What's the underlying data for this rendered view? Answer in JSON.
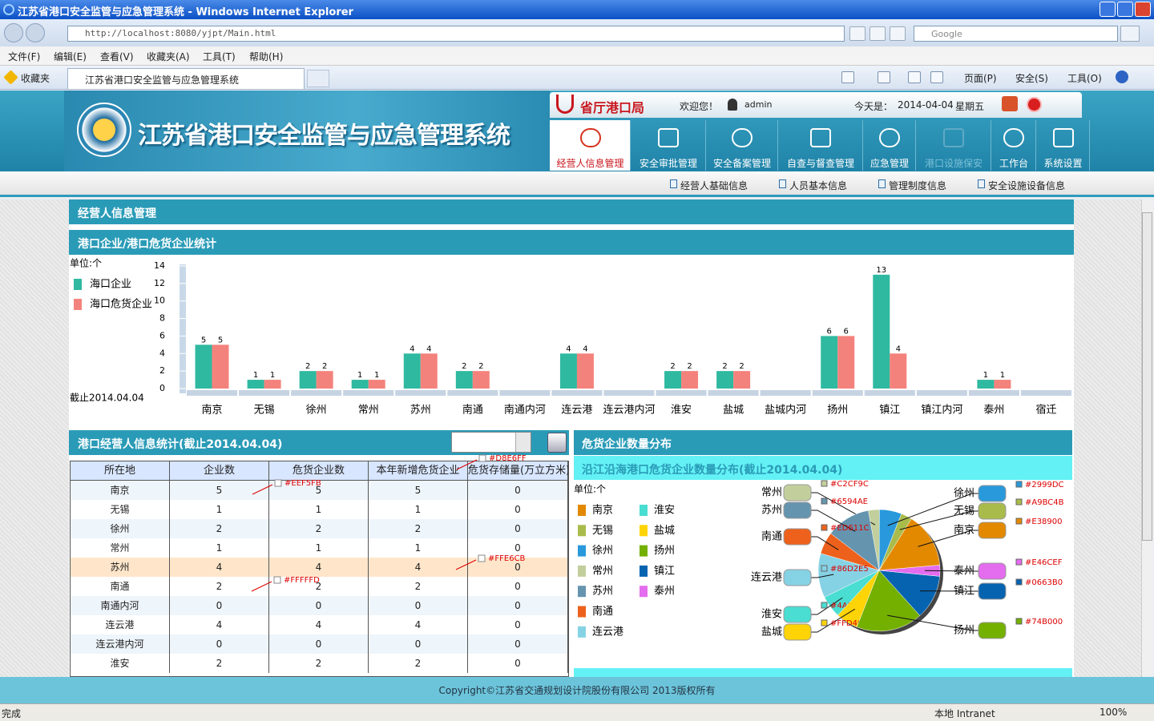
{
  "browser": {
    "title": "江苏省港口安全监管与应急管理系统 - Windows Internet Explorer",
    "address": "http://localhost:8080/yjpt/Main.html",
    "search": "Google",
    "menu": [
      "文件(F)",
      "编辑(E)",
      "查看(V)",
      "收藏夹(A)",
      "工具(T)",
      "帮助(H)"
    ],
    "favorites": "收藏夹",
    "tab": "江苏省港口安全监管与应急管理系统",
    "tools": [
      "页面(P)",
      "安全(S)",
      "工具(O)"
    ],
    "status": "完成",
    "zone": "本地 Intranet",
    "zoom": "100%"
  },
  "header": {
    "system_title": "江苏省港口安全监管与应急管理系统",
    "bureau": "省厅港口局",
    "welcome": "欢迎您！",
    "user": "admin",
    "date_label": "今天是：",
    "date": "2014-04-04",
    "weekday": "星期五"
  },
  "nav": [
    "经营人信息管理",
    "安全审批管理",
    "安全备案管理",
    "自查与督查管理",
    "应急管理",
    "港口设施保安",
    "工作台",
    "系统设置"
  ],
  "subnav": [
    "经营人基础信息",
    "人员基本信息",
    "管理制度信息",
    "安全设施设备信息"
  ],
  "section_title": "经营人信息管理",
  "panels": {
    "bar": "港口企业/港口危货企业统计",
    "table": "港口经营人信息统计(截止2014.04.04)",
    "pie": "危货企业数量分布"
  },
  "chart_data": [
    {
      "type": "bar",
      "unit_label": "单位:个",
      "note": "截止2014.04.04",
      "categories": [
        "南京",
        "无锡",
        "徐州",
        "常州",
        "苏州",
        "南通",
        "南通内河",
        "连云港",
        "连云港内河",
        "淮安",
        "盐城",
        "盐城内河",
        "扬州",
        "镇江",
        "镇江内河",
        "泰州",
        "宿迁"
      ],
      "series": [
        {
          "name": "海口企业",
          "color": "#2fb9a0",
          "values": [
            5,
            1,
            2,
            1,
            4,
            2,
            0,
            4,
            0,
            2,
            2,
            0,
            6,
            13,
            0,
            1,
            0
          ]
        },
        {
          "name": "海口危货企业",
          "color": "#f4827c",
          "values": [
            5,
            1,
            2,
            1,
            4,
            2,
            0,
            4,
            0,
            2,
            2,
            0,
            6,
            4,
            0,
            1,
            0
          ]
        }
      ],
      "ylim": [
        0,
        14
      ],
      "yticks": [
        0,
        2,
        4,
        6,
        8,
        10,
        12,
        14
      ],
      "grid": false,
      "legend": "left"
    },
    {
      "type": "pie",
      "title": "沿江沿海港口危货企业数量分布(截止2014.04.04)",
      "unit_label": "单位:个",
      "categories": [
        "南京",
        "无锡",
        "徐州",
        "常州",
        "苏州",
        "南通",
        "连云港",
        "淮安",
        "盐城",
        "扬州",
        "镇江",
        "泰州"
      ],
      "values": [
        5,
        1,
        2,
        1,
        4,
        2,
        4,
        2,
        2,
        6,
        4,
        1
      ],
      "colors": [
        "#E38900",
        "#A9BC4B",
        "#2999DC",
        "#C2CF9C",
        "#6594AE",
        "#ED611C",
        "#86D2E5",
        "#4ADDD2",
        "#FFD406",
        "#74B000",
        "#0663B0",
        "#E46CEF"
      ]
    }
  ],
  "table": {
    "headers": [
      "所在地",
      "企业数",
      "危货企业数",
      "本年新增危货企业",
      "危货存储量(万立方米)"
    ],
    "rows": [
      [
        "南京",
        5,
        5,
        5,
        0
      ],
      [
        "无锡",
        1,
        1,
        1,
        0
      ],
      [
        "徐州",
        2,
        2,
        2,
        0
      ],
      [
        "常州",
        1,
        1,
        1,
        0
      ],
      [
        "苏州",
        4,
        4,
        4,
        0
      ],
      [
        "南通",
        2,
        2,
        2,
        0
      ],
      [
        "南通内河",
        0,
        0,
        0,
        0
      ],
      [
        "连云港",
        4,
        4,
        4,
        0
      ],
      [
        "连云港内河",
        0,
        0,
        0,
        0
      ],
      [
        "淮安",
        2,
        2,
        2,
        0
      ]
    ]
  },
  "annotations": [
    "#D8E6FF",
    "#EEF5FB",
    "#FFE6CB",
    "#FFFFFD"
  ],
  "footer": "Copyright©江苏省交通规划设计院股份有限公司 2013版权所有"
}
